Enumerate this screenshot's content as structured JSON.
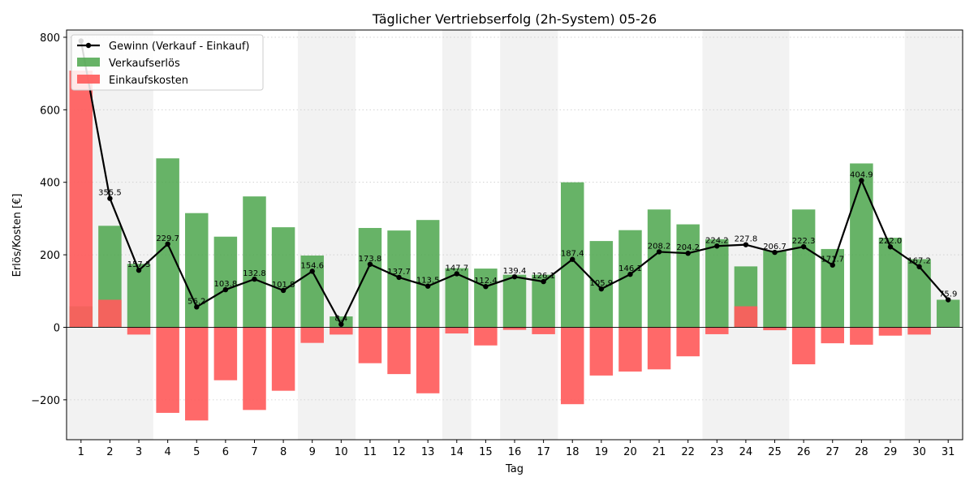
{
  "chart_data": {
    "type": "bar",
    "title": "Täglicher Vertriebserfolg (2h-System) 05-26",
    "xlabel": "Tag",
    "ylabel": "Erlös/Kosten [€]",
    "ylim": [
      -310,
      820
    ],
    "yticks": [
      -200,
      0,
      200,
      400,
      600,
      800
    ],
    "ytick_labels": [
      "−200",
      "0",
      "200",
      "400",
      "600",
      "800"
    ],
    "grid": "horizontal dotted",
    "legend_position": "top-left",
    "categories": [
      "1",
      "2",
      "3",
      "4",
      "5",
      "6",
      "7",
      "8",
      "9",
      "10",
      "11",
      "12",
      "13",
      "14",
      "15",
      "16",
      "17",
      "18",
      "19",
      "20",
      "21",
      "22",
      "23",
      "24",
      "25",
      "26",
      "27",
      "28",
      "29",
      "30",
      "31"
    ],
    "shaded_days": [
      1,
      2,
      3,
      9,
      10,
      14,
      16,
      17,
      23,
      24,
      25,
      30,
      31
    ],
    "series": [
      {
        "name": "Verkaufserlös",
        "kind": "bar",
        "color": "#4ca64c",
        "values": [
          58,
          280,
          175,
          466,
          315,
          250,
          361,
          276,
          198,
          30,
          274,
          267,
          296,
          163,
          162,
          145,
          145,
          400,
          238,
          268,
          325,
          284,
          243,
          168,
          212,
          325,
          216,
          452,
          247,
          188,
          76
        ]
      },
      {
        "name": "Einkaufskosten",
        "kind": "bar",
        "color": "#ff5c5c",
        "values": [
          708,
          76,
          -20,
          -236,
          -257,
          -146,
          -228,
          -175,
          -43,
          -20,
          -99,
          -129,
          -182,
          -17,
          -50,
          -7,
          -19,
          -212,
          -133,
          -122,
          -116,
          -80,
          -19,
          58,
          -8,
          -102,
          -44,
          -48,
          -23,
          -20,
          0
        ]
      },
      {
        "name": "Gewinn (Verkauf - Einkauf)",
        "kind": "line",
        "color": "#000000",
        "values": [
          790,
          355.5,
          157.3,
          229.7,
          56.2,
          103.8,
          132.8,
          101.8,
          154.6,
          8.4,
          173.8,
          137.7,
          113.5,
          147.7,
          112.4,
          139.4,
          126.1,
          187.4,
          105.9,
          146.1,
          208.2,
          204.2,
          224.2,
          227.8,
          206.7,
          222.3,
          171.7,
          404.9,
          222.0,
          167.2,
          75.9
        ],
        "labels": [
          "",
          "355.5",
          "157.3",
          "229.7",
          "56.2",
          "103.8",
          "132.8",
          "101.8",
          "154.6",
          "8.4",
          "173.8",
          "137.7",
          "113.5",
          "147.7",
          "112.4",
          "139.4",
          "126.1",
          "187.4",
          "105.9",
          "146.1",
          "208.2",
          "204.2",
          "224.2",
          "227.8",
          "206.7",
          "222.3",
          "171.7",
          "404.9",
          "222.0",
          "167.2",
          "75.9"
        ]
      }
    ]
  }
}
